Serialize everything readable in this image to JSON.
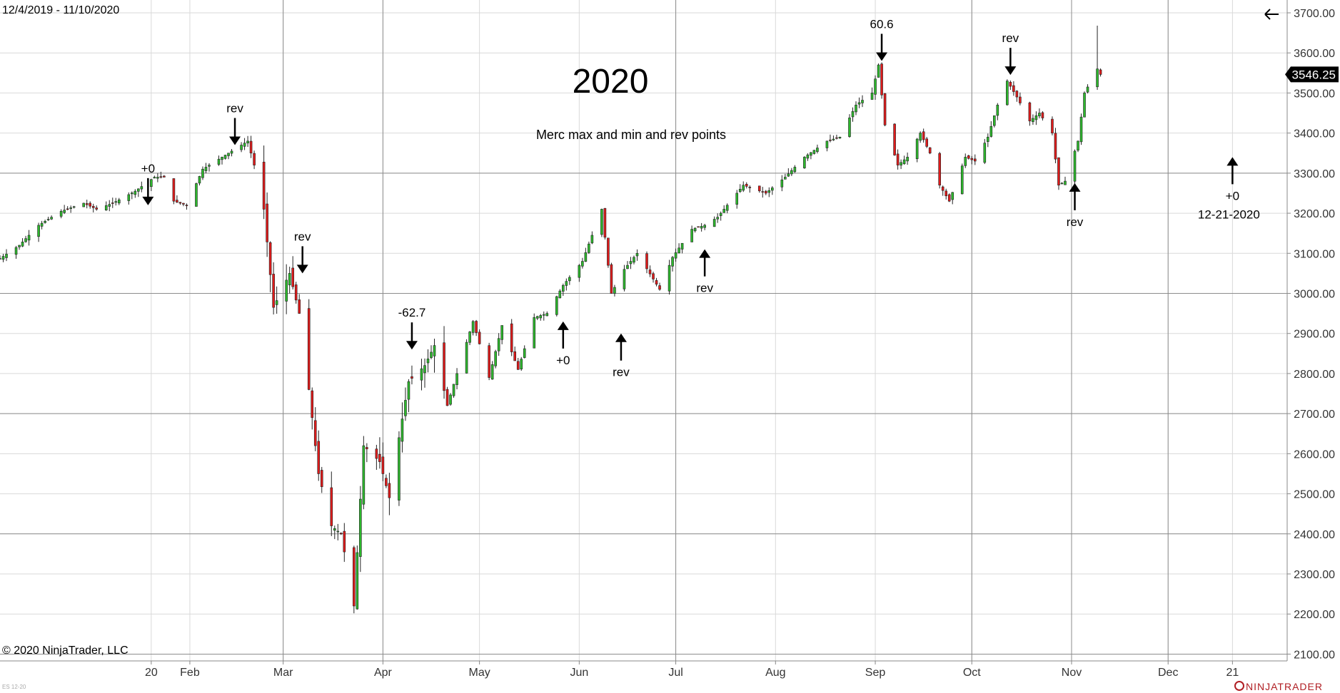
{
  "header": {
    "date_range": "12/4/2019 - 11/10/2020",
    "back_icon": "left-arrow-icon"
  },
  "footer": {
    "copyright": "© 2020 NinjaTrader, LLC",
    "instrument": "ES 12-20",
    "brand": "NINJATRADER"
  },
  "colors": {
    "up": "#2db82d",
    "down": "#e01b1b",
    "grid": "#d9d9d9",
    "major_grid": "#8c8c8c",
    "axis_text": "#333333",
    "price_badge": "#000000"
  },
  "chart_data": {
    "type": "candlestick",
    "title": "2020",
    "subtitle": "Merc max and min and rev points",
    "current_price_label": "3546.25",
    "y_axis": {
      "position": "right",
      "range": [
        2083,
        3732
      ],
      "ticks": [
        "3700.00",
        "3600.00",
        "3500.00",
        "3400.00",
        "3300.00",
        "3200.00",
        "3100.00",
        "3000.00",
        "2900.00",
        "2800.00",
        "2700.00",
        "2600.00",
        "2500.00",
        "2400.00",
        "2300.00",
        "2200.00",
        "2100.00"
      ]
    },
    "x_axis": {
      "range": [
        "2019-12-04",
        "2021-01-07"
      ],
      "ticks": [
        {
          "label": "20",
          "date": "2020-01-20"
        },
        {
          "label": "Feb",
          "date": "2020-02-01"
        },
        {
          "label": "Mar",
          "date": "2020-03-01"
        },
        {
          "label": "Apr",
          "date": "2020-04-01"
        },
        {
          "label": "May",
          "date": "2020-05-01"
        },
        {
          "label": "Jun",
          "date": "2020-06-01"
        },
        {
          "label": "Jul",
          "date": "2020-07-01"
        },
        {
          "label": "Aug",
          "date": "2020-08-01"
        },
        {
          "label": "Sep",
          "date": "2020-09-01"
        },
        {
          "label": "Oct",
          "date": "2020-10-01"
        },
        {
          "label": "Nov",
          "date": "2020-11-01"
        },
        {
          "label": "Dec",
          "date": "2020-12-01"
        },
        {
          "label": "21",
          "date": "2020-12-21"
        }
      ]
    },
    "grid": {
      "horizontal": true,
      "vertical": true
    },
    "major_lines": {
      "horizontal": [
        3300,
        3000,
        2700,
        2400,
        2100
      ],
      "vertical": [
        "2020-03-01",
        "2020-04-01",
        "2020-07-01",
        "2020-10-01",
        "2020-11-01",
        "2020-12-01"
      ]
    },
    "path_points": [
      [
        "2019-12-04",
        3087
      ],
      [
        "2019-12-10",
        3120
      ],
      [
        "2019-12-16",
        3170
      ],
      [
        "2019-12-23",
        3205
      ],
      [
        "2019-12-30",
        3225
      ],
      [
        "2020-01-03",
        3210
      ],
      [
        "2020-01-08",
        3225
      ],
      [
        "2020-01-15",
        3255
      ],
      [
        "2020-01-21",
        3290
      ],
      [
        "2020-01-24",
        3290
      ],
      [
        "2020-01-27",
        3230
      ],
      [
        "2020-01-31",
        3220
      ],
      [
        "2020-02-05",
        3310
      ],
      [
        "2020-02-10",
        3335
      ],
      [
        "2020-02-14",
        3355
      ],
      [
        "2020-02-19",
        3380
      ],
      [
        "2020-02-21",
        3320
      ],
      [
        "2020-02-24",
        3210
      ],
      [
        "2020-02-27",
        2965
      ],
      [
        "2020-03-03",
        3050
      ],
      [
        "2020-03-06",
        2950
      ],
      [
        "2020-03-09",
        2760
      ],
      [
        "2020-03-12",
        2550
      ],
      [
        "2020-03-16",
        2420
      ],
      [
        "2020-03-19",
        2400
      ],
      [
        "2020-03-23",
        2220
      ],
      [
        "2020-03-26",
        2620
      ],
      [
        "2020-03-31",
        2580
      ],
      [
        "2020-04-03",
        2490
      ],
      [
        "2020-04-06",
        2640
      ],
      [
        "2020-04-09",
        2780
      ],
      [
        "2020-04-14",
        2820
      ],
      [
        "2020-04-17",
        2870
      ],
      [
        "2020-04-21",
        2720
      ],
      [
        "2020-04-24",
        2800
      ],
      [
        "2020-04-29",
        2930
      ],
      [
        "2020-05-04",
        2790
      ],
      [
        "2020-05-08",
        2920
      ],
      [
        "2020-05-13",
        2810
      ],
      [
        "2020-05-18",
        2940
      ],
      [
        "2020-05-22",
        2950
      ],
      [
        "2020-05-27",
        3020
      ],
      [
        "2020-06-02",
        3080
      ],
      [
        "2020-06-08",
        3210
      ],
      [
        "2020-06-11",
        3000
      ],
      [
        "2020-06-15",
        3060
      ],
      [
        "2020-06-19",
        3100
      ],
      [
        "2020-06-26",
        3010
      ],
      [
        "2020-06-30",
        3090
      ],
      [
        "2020-07-06",
        3160
      ],
      [
        "2020-07-10",
        3170
      ],
      [
        "2020-07-14",
        3190
      ],
      [
        "2020-07-17",
        3220
      ],
      [
        "2020-07-22",
        3270
      ],
      [
        "2020-07-29",
        3250
      ],
      [
        "2020-08-04",
        3290
      ],
      [
        "2020-08-10",
        3340
      ],
      [
        "2020-08-17",
        3380
      ],
      [
        "2020-08-21",
        3390
      ],
      [
        "2020-08-26",
        3470
      ],
      [
        "2020-08-31",
        3500
      ],
      [
        "2020-09-02",
        3570
      ],
      [
        "2020-09-04",
        3420
      ],
      [
        "2020-09-08",
        3320
      ],
      [
        "2020-09-11",
        3340
      ],
      [
        "2020-09-15",
        3400
      ],
      [
        "2020-09-18",
        3350
      ],
      [
        "2020-09-21",
        3270
      ],
      [
        "2020-09-24",
        3230
      ],
      [
        "2020-09-29",
        3340
      ],
      [
        "2020-10-02",
        3330
      ],
      [
        "2020-10-06",
        3390
      ],
      [
        "2020-10-09",
        3470
      ],
      [
        "2020-10-12",
        3530
      ],
      [
        "2020-10-15",
        3490
      ],
      [
        "2020-10-19",
        3430
      ],
      [
        "2020-10-22",
        3450
      ],
      [
        "2020-10-26",
        3400
      ],
      [
        "2020-10-28",
        3270
      ],
      [
        "2020-10-30",
        3280
      ],
      [
        "2020-11-03",
        3380
      ],
      [
        "2020-11-05",
        3500
      ],
      [
        "2020-11-09",
        3560
      ],
      [
        "2020-11-10",
        3546
      ]
    ],
    "annotations": [
      {
        "label": "+0",
        "date": "2020-01-19",
        "price": 3220,
        "direction": "down"
      },
      {
        "label": "rev",
        "date": "2020-02-15",
        "price": 3370,
        "direction": "down"
      },
      {
        "label": "rev",
        "date": "2020-03-07",
        "price": 3050,
        "direction": "down"
      },
      {
        "label": "-62.7",
        "date": "2020-04-10",
        "price": 2860,
        "direction": "down"
      },
      {
        "label": "+0",
        "date": "2020-05-27",
        "price": 2930,
        "direction": "up"
      },
      {
        "label": "rev",
        "date": "2020-06-14",
        "price": 2900,
        "direction": "up"
      },
      {
        "label": "rev",
        "date": "2020-07-10",
        "price": 3110,
        "direction": "up"
      },
      {
        "label": "60.6",
        "date": "2020-09-03",
        "price": 3580,
        "direction": "down"
      },
      {
        "label": "rev",
        "date": "2020-10-13",
        "price": 3545,
        "direction": "down"
      },
      {
        "label": "rev",
        "date": "2020-11-02",
        "price": 3275,
        "direction": "up"
      },
      {
        "label": "+0",
        "date": "2020-12-21",
        "price": 3340,
        "direction": "up",
        "note": "12-21-2020"
      }
    ]
  }
}
